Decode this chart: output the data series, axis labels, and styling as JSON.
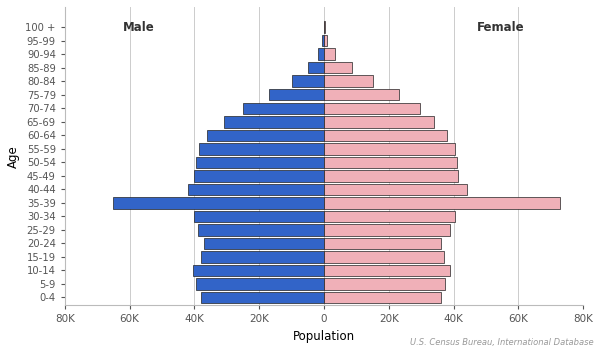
{
  "age_groups": [
    "0-4",
    "5-9",
    "10-14",
    "15-19",
    "20-24",
    "25-29",
    "30-34",
    "35-39",
    "40-44",
    "45-49",
    "50-54",
    "55-59",
    "60-64",
    "65-69",
    "70-74",
    "75-79",
    "80-84",
    "85-89",
    "90-94",
    "95-99",
    "100 +"
  ],
  "male": [
    38000,
    39500,
    40500,
    38000,
    37000,
    39000,
    40000,
    65000,
    42000,
    40000,
    39500,
    38500,
    36000,
    31000,
    25000,
    17000,
    10000,
    5000,
    1800,
    500,
    80
  ],
  "female": [
    36000,
    37500,
    39000,
    37000,
    36000,
    39000,
    40500,
    73000,
    44000,
    41500,
    41000,
    40500,
    38000,
    34000,
    29500,
    23000,
    15000,
    8500,
    3500,
    1000,
    180
  ],
  "male_color": "#3264c8",
  "female_color": "#f0b0b8",
  "bar_edge_color": "#222222",
  "bar_edge_width": 0.5,
  "xlim": 80000,
  "xticks": [
    -80000,
    -60000,
    -40000,
    -20000,
    0,
    20000,
    40000,
    60000,
    80000
  ],
  "xticklabels": [
    "80K",
    "60K",
    "40K",
    "20K",
    "0",
    "20K",
    "40K",
    "60K",
    "80K"
  ],
  "xlabel": "Population",
  "ylabel": "Age",
  "male_label": "Male",
  "female_label": "Female",
  "source_text": "U.S. Census Bureau, International Database",
  "bg_color": "#ffffff",
  "grid_color": "#cccccc",
  "bar_height": 0.85
}
